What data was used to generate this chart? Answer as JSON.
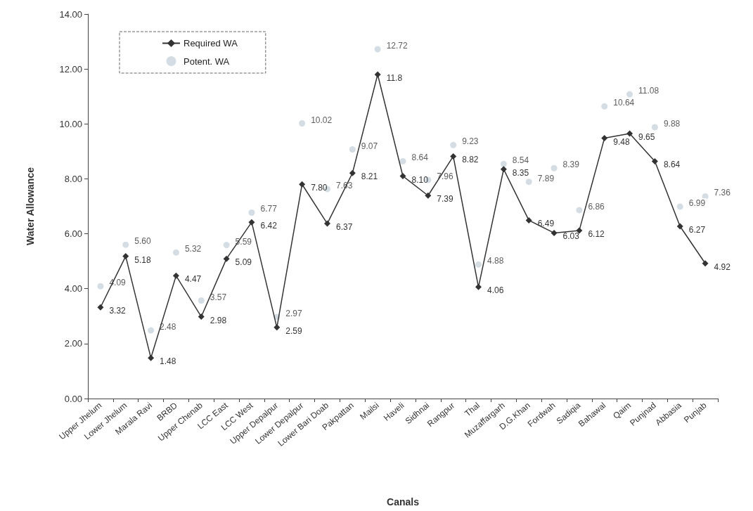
{
  "chart_data": {
    "type": "line",
    "xlabel": "Canals",
    "ylabel": "Water Allowance",
    "categories": [
      "Upper Jhelum",
      "Lower Jhelum",
      "Marala Ravi",
      "BRBD",
      "Upper Chenab",
      "LCC East",
      "LCC West",
      "Upper Depalpur",
      "Lower Depalpur",
      "Lower Bari Doab",
      "Pakpattan",
      "Mailsi",
      "Haveli",
      "Sidhnai",
      "Rangpur",
      "Thal",
      "Muzaffargarh",
      "D.G.Khan",
      "Fordwah",
      "Sadiqia",
      "Bahawal",
      "Qaim",
      "Punjnad",
      "Abbasia",
      "Punjab"
    ],
    "series": [
      {
        "name": "Required WA",
        "type": "line",
        "color": "#333333",
        "marker": "diamond",
        "values": [
          3.32,
          5.18,
          1.48,
          4.47,
          2.98,
          5.09,
          6.42,
          2.59,
          7.8,
          6.37,
          8.21,
          11.8,
          8.1,
          7.39,
          8.82,
          4.06,
          8.35,
          6.49,
          6.03,
          6.12,
          9.48,
          9.65,
          8.64,
          6.27,
          4.92
        ],
        "value_labels": [
          "3.32",
          "5.18",
          "1.48",
          "4.47",
          "2.98",
          "5.09",
          "6.42",
          "2.59",
          "7.80",
          "6.37",
          "8.21",
          "11.8",
          "8.10",
          "7.39",
          "8.82",
          "4.06",
          "8.35",
          "6.49",
          "6.03",
          "6.12",
          "9.48",
          "9.65",
          "8.64",
          "6.27",
          "4.92"
        ]
      },
      {
        "name": "Potent. WA",
        "type": "scatter",
        "color": "#c8d4dc",
        "marker": "circle",
        "values": [
          4.09,
          5.6,
          2.48,
          5.32,
          3.57,
          5.59,
          6.77,
          2.97,
          10.02,
          7.63,
          9.07,
          12.72,
          8.64,
          7.96,
          9.23,
          4.88,
          8.54,
          7.89,
          8.39,
          6.86,
          10.64,
          11.08,
          9.88,
          6.99,
          7.36
        ],
        "value_labels": [
          "4.09",
          "5.60",
          "2.48",
          "5.32",
          "3.57",
          "5.59",
          "6.77",
          "2.97",
          "10.02",
          "7.63",
          "9.07",
          "12.72",
          "8.64",
          "7.96",
          "9.23",
          "4.88",
          "8.54",
          "7.89",
          "8.39",
          "6.86",
          "10.64",
          "11.08",
          "9.88",
          "6.99",
          "7.36"
        ]
      }
    ],
    "ylim": [
      0,
      14
    ],
    "yticks": [
      {
        "value": 0,
        "label": "0.00"
      },
      {
        "value": 2,
        "label": "2.00"
      },
      {
        "value": 4,
        "label": "4.00"
      },
      {
        "value": 6,
        "label": "6.00"
      },
      {
        "value": 8,
        "label": "8.00"
      },
      {
        "value": 10,
        "label": "10.00"
      },
      {
        "value": 12,
        "label": "12.00"
      },
      {
        "value": 14,
        "label": "14.00"
      }
    ],
    "grid": false,
    "legend": "top left"
  }
}
